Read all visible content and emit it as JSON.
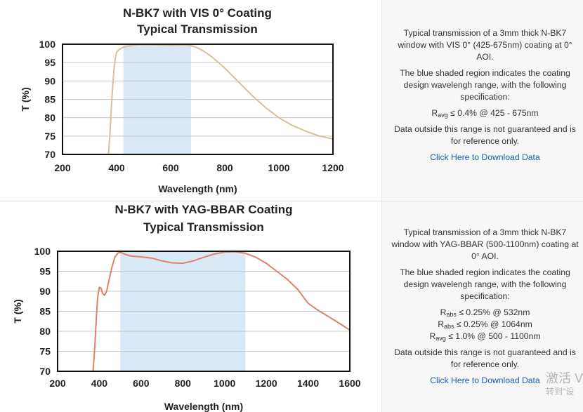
{
  "chart_data": [
    {
      "type": "line",
      "title": "N-BK7 with VIS 0° Coating",
      "subtitle": "Typical Transmission",
      "xlabel": "Wavelength (nm)",
      "ylabel": "T (%)",
      "xlim": [
        200,
        1200
      ],
      "ylim": [
        70,
        100
      ],
      "xticks": [
        200,
        400,
        600,
        800,
        1000,
        1200
      ],
      "yticks": [
        70,
        75,
        80,
        85,
        90,
        95,
        100
      ],
      "grid": "horizontal",
      "shaded_region": [
        425,
        675
      ],
      "shade_color": "#d9e8f5",
      "line_color": "#d6c19a",
      "series": [
        {
          "x": [
            370,
            375,
            380,
            385,
            390,
            395,
            400,
            410,
            420,
            430,
            450,
            475,
            500,
            550,
            600,
            650,
            675,
            700,
            720,
            750,
            800,
            850,
            900,
            950,
            1000,
            1050,
            1100,
            1150,
            1200
          ],
          "values": [
            70,
            75,
            82,
            88,
            93,
            96,
            97.8,
            98.6,
            99.0,
            99.3,
            99.6,
            99.8,
            99.9,
            99.8,
            99.7,
            99.8,
            99.6,
            99.0,
            98.2,
            96.7,
            93.5,
            89.8,
            86.1,
            82.8,
            80.0,
            77.9,
            76.3,
            75.0,
            74.2
          ]
        }
      ]
    },
    {
      "type": "line",
      "title": "N-BK7 with YAG-BBAR Coating",
      "subtitle": "Typical Transmission",
      "xlabel": "Wavelength (nm)",
      "ylabel": "T (%)",
      "xlim": [
        200,
        1600
      ],
      "ylim": [
        70,
        100
      ],
      "xticks": [
        200,
        400,
        600,
        800,
        1000,
        1200,
        1400,
        1600
      ],
      "yticks": [
        70,
        75,
        80,
        85,
        90,
        95,
        100
      ],
      "grid": "horizontal",
      "shaded_region": [
        500,
        1100
      ],
      "shade_color": "#d9e8f5",
      "line_color": "#e0806e",
      "series": [
        {
          "x": [
            370,
            378,
            385,
            392,
            400,
            408,
            415,
            425,
            435,
            445,
            460,
            475,
            490,
            505,
            520,
            550,
            600,
            650,
            700,
            750,
            800,
            850,
            900,
            950,
            1000,
            1050,
            1100,
            1150,
            1200,
            1250,
            1300,
            1350,
            1400,
            1450,
            1500,
            1550,
            1600
          ],
          "values": [
            70,
            76,
            83,
            88.5,
            91,
            90.8,
            89.5,
            89.0,
            90.0,
            92.5,
            96.0,
            98.6,
            99.6,
            99.7,
            99.3,
            98.8,
            98.6,
            98.3,
            97.6,
            97.1,
            97.0,
            97.6,
            98.5,
            99.3,
            99.8,
            99.9,
            99.5,
            98.5,
            97.0,
            95.0,
            93.0,
            90.5,
            87.0,
            85.2,
            83.6,
            82.0,
            80.3
          ]
        }
      ]
    }
  ],
  "descriptions": [
    {
      "intro": "Typical transmission of a 3mm thick N-BK7 window with VIS 0° (425-675nm) coating at 0° AOI.",
      "shaded_note": "The blue shaded region indicates the coating design wavelengh range, with the following specification:",
      "specs": [
        {
          "sym": "R",
          "sub": "avg",
          "text": " ≤ 0.4% @ 425 - 675nm"
        }
      ],
      "disclaimer": "Data outside this range is not guaranteed and is for reference only.",
      "download_link": "Click Here to Download Data"
    },
    {
      "intro": "Typical transmission of a 3mm thick N-BK7 window with YAG-BBAR (500-1100nm) coating at 0° AOI.",
      "shaded_note": "The blue shaded region indicates the coating design wavelengh range, with the following specification:",
      "specs": [
        {
          "sym": "R",
          "sub": "abs",
          "text": " ≤ 0.25% @ 532nm"
        },
        {
          "sym": "R",
          "sub": "abs",
          "text": " ≤ 0.25% @ 1064nm"
        },
        {
          "sym": "R",
          "sub": "avg",
          "text": " ≤ 1.0% @ 500 - 1100nm"
        }
      ],
      "disclaimer": "Data outside this range is not guaranteed and is for reference only.",
      "download_link": "Click Here to Download Data"
    }
  ],
  "watermark": {
    "line1": "激活 V",
    "line2": "转到\"设"
  }
}
